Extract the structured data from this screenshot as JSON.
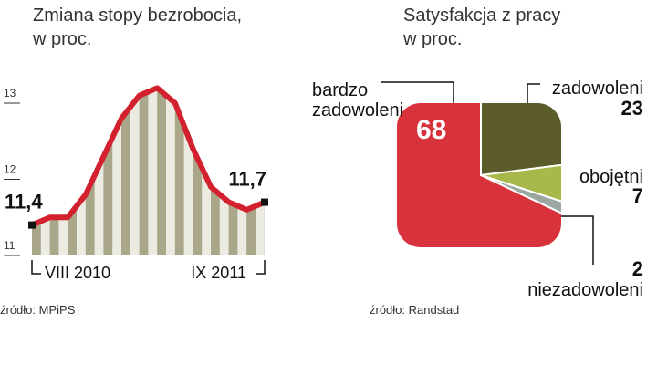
{
  "chart_data": [
    {
      "type": "line",
      "title": "Zmiana stopy bezrobocia,\nw proc.",
      "categories": [
        "VIII 2010",
        null,
        null,
        null,
        null,
        null,
        null,
        null,
        null,
        null,
        null,
        null,
        null,
        "IX 2011"
      ],
      "values": [
        11.4,
        11.5,
        11.5,
        11.8,
        12.3,
        12.8,
        13.1,
        13.2,
        13.0,
        12.4,
        11.9,
        11.7,
        11.6,
        11.7
      ],
      "value_labels": [
        "11,4",
        null,
        null,
        null,
        null,
        null,
        null,
        null,
        null,
        null,
        null,
        null,
        null,
        "11,7"
      ],
      "color": "#d3202e",
      "ylim": [
        11,
        13.3
      ],
      "yticks": [
        11,
        12,
        13
      ],
      "source": "źródło: MPiPS"
    },
    {
      "type": "pie",
      "title": "Satysfakcja z pracy\nw proc.",
      "categories": [
        "bardzo\nzadowoleni",
        "zadowoleni",
        "obojętni",
        "niezadowoleni"
      ],
      "values": [
        68,
        23,
        7,
        2
      ],
      "colors": [
        "#d8323d",
        "#5b5b2b",
        "#a9b84b",
        "#9aa6a0"
      ],
      "source": "źródło: Randstad"
    }
  ]
}
